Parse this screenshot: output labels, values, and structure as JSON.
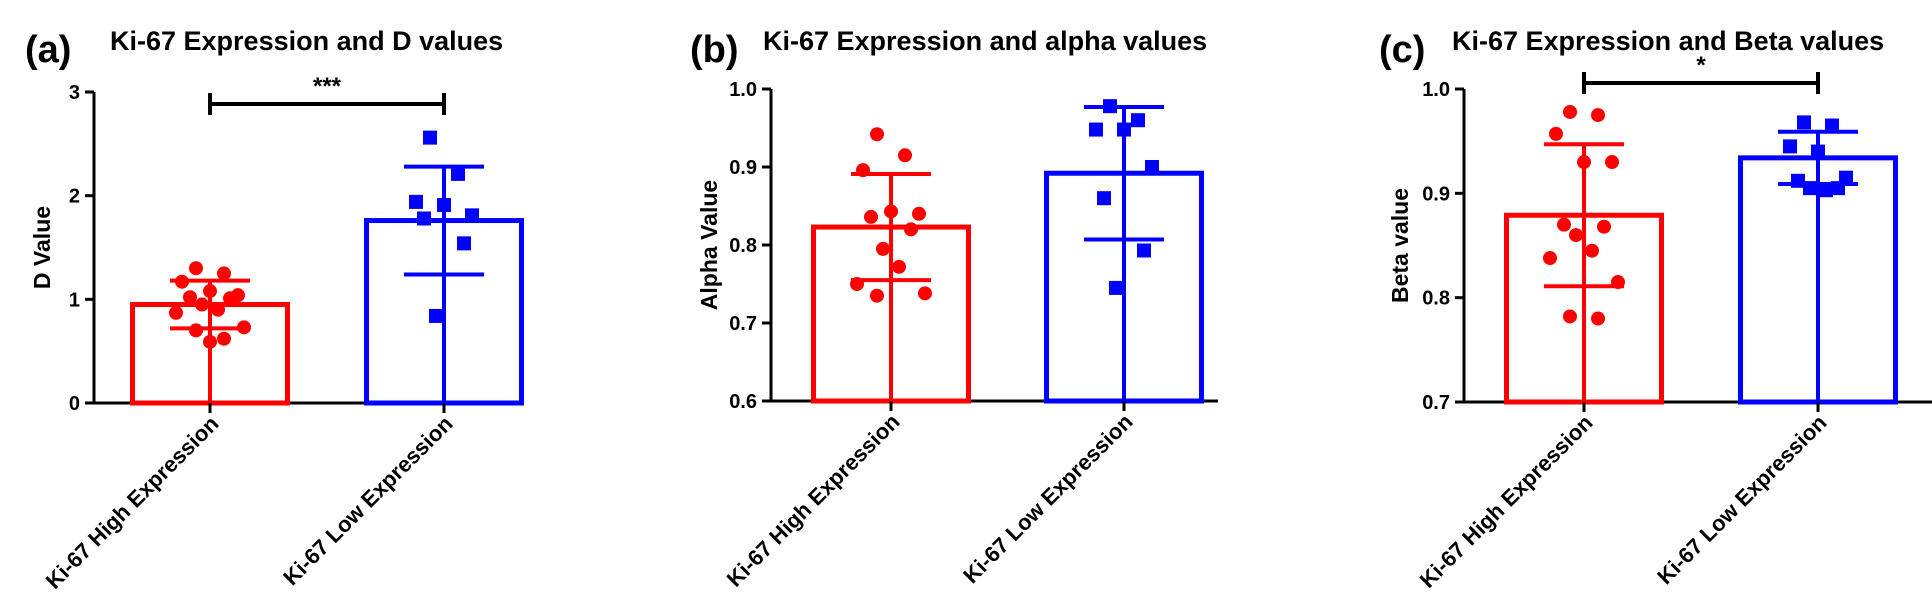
{
  "colors": {
    "high": "#ff0000",
    "low": "#0000ff",
    "axis": "#000000"
  },
  "chart_data": [
    {
      "type": "bar",
      "panel": "(a)",
      "title": "Ki-67 Expression and D values",
      "ylabel": "D Value",
      "ylim": [
        0,
        3
      ],
      "yticks": [
        "0",
        "1",
        "2",
        "3"
      ],
      "categories": [
        "Ki-67 High Expression",
        "Ki-67 Low Expression"
      ],
      "means": [
        0.95,
        1.76
      ],
      "sd": [
        0.23,
        0.52
      ],
      "points": [
        [
          1.3,
          1.25,
          1.17,
          1.08,
          1.04,
          1.02,
          1.01,
          0.95,
          0.9,
          0.87,
          0.73,
          0.7,
          0.62,
          0.59
        ],
        [
          2.56,
          2.21,
          1.94,
          1.91,
          1.81,
          1.78,
          1.54,
          0.84
        ]
      ],
      "significance": "***"
    },
    {
      "type": "bar",
      "panel": "(b)",
      "title": "Ki-67 Expression and alpha values",
      "ylabel": "Alpha Value",
      "ylim": [
        0.6,
        1.0
      ],
      "yticks": [
        "0.6",
        "0.7",
        "0.8",
        "0.9",
        "1.0"
      ],
      "categories": [
        "Ki-67 High Expression",
        "Ki-67 Low Expression"
      ],
      "means": [
        0.823,
        0.892
      ],
      "sd": [
        0.068,
        0.085
      ],
      "points": [
        [
          0.942,
          0.915,
          0.896,
          0.843,
          0.84,
          0.836,
          0.82,
          0.795,
          0.772,
          0.75,
          0.738,
          0.735
        ],
        [
          0.978,
          0.96,
          0.948,
          0.948,
          0.9,
          0.86,
          0.793,
          0.745
        ]
      ],
      "significance": ""
    },
    {
      "type": "bar",
      "panel": "(c)",
      "title": "Ki-67 Expression and Beta values",
      "ylabel": "Beta value",
      "ylim": [
        0.7,
        1.0
      ],
      "yticks": [
        "0.7",
        "0.8",
        "0.9",
        "1.0"
      ],
      "categories": [
        "Ki-67 High Expression",
        "Ki-67 Low Expression"
      ],
      "means": [
        0.879,
        0.934
      ],
      "sd": [
        0.068,
        0.025
      ],
      "points": [
        [
          0.978,
          0.975,
          0.957,
          0.93,
          0.93,
          0.87,
          0.868,
          0.86,
          0.845,
          0.838,
          0.815,
          0.782,
          0.78
        ],
        [
          0.968,
          0.965,
          0.945,
          0.94,
          0.915,
          0.912,
          0.905,
          0.905,
          0.903
        ]
      ],
      "significance": "*"
    }
  ]
}
